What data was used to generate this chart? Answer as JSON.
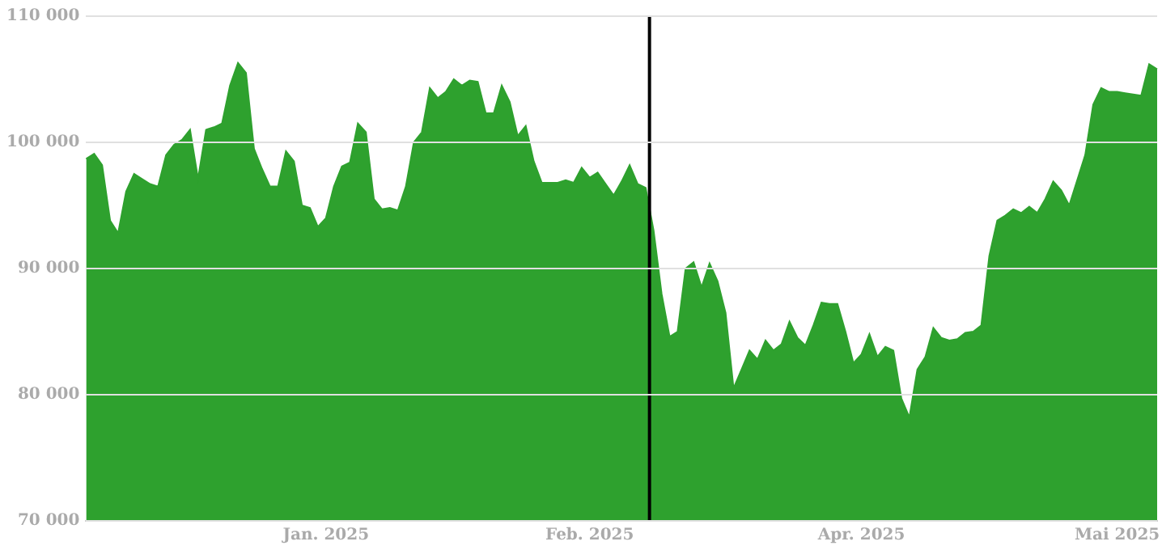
{
  "chart_data": {
    "type": "area",
    "categories": [
      null,
      null,
      null,
      null,
      null,
      null,
      null,
      null,
      null,
      null,
      null,
      null,
      null,
      null,
      null,
      null,
      null,
      null,
      null,
      null,
      null,
      null,
      null,
      null,
      null,
      null,
      null,
      null,
      null,
      null,
      "Jan. 2025",
      null,
      null,
      null,
      null,
      null,
      null,
      null,
      null,
      null,
      null,
      null,
      null,
      null,
      null,
      null,
      null,
      null,
      null,
      null,
      null,
      null,
      null,
      null,
      null,
      null,
      null,
      null,
      null,
      null,
      null,
      null,
      null,
      "Feb. 2025",
      null,
      null,
      null,
      null,
      null,
      null,
      null,
      null,
      null,
      null,
      null,
      null,
      null,
      null,
      null,
      null,
      null,
      null,
      null,
      null,
      null,
      null,
      null,
      null,
      null,
      null,
      null,
      null,
      null,
      null,
      null,
      null,
      null,
      "Apr. 2025",
      null,
      null,
      null,
      null,
      null,
      null,
      null,
      null,
      null,
      null,
      null,
      null,
      null,
      null,
      null,
      null,
      null,
      null,
      null,
      null,
      null,
      null,
      null,
      null,
      null,
      null,
      null,
      null,
      null,
      null,
      null,
      "Mai 2025",
      null,
      null,
      null,
      null,
      null
    ],
    "series": [
      {
        "color": "#2ea12e",
        "values": [
          98700,
          99100,
          98200,
          93800,
          92800,
          96100,
          97500,
          97100,
          96700,
          96500,
          99000,
          99800,
          100200,
          101000,
          97100,
          101000,
          101200,
          101500,
          104500,
          106300,
          105500,
          99500,
          97900,
          96500,
          96500,
          99300,
          98500,
          95000,
          94800,
          93300,
          94000,
          96500,
          98100,
          98400,
          101500,
          100800,
          95500,
          94700,
          94800,
          94600,
          96500,
          100000,
          100800,
          104300,
          103500,
          104000,
          105000,
          104500,
          104900,
          104800,
          102300,
          102300,
          104500,
          103200,
          100500,
          101300,
          98500,
          96800,
          96800,
          96800,
          97000,
          96800,
          98000,
          97200,
          97600,
          96700,
          95800,
          96900,
          98200,
          96700,
          96400,
          93000,
          88000,
          84600,
          85000,
          90000,
          90500,
          88500,
          90400,
          89000,
          86500,
          80500,
          82000,
          83500,
          82800,
          84300,
          83500,
          84000,
          85800,
          84500,
          83900,
          85500,
          87300,
          87200,
          87200,
          85000,
          82500,
          83200,
          84800,
          83000,
          83800,
          83500,
          79700,
          78200,
          82000,
          83000,
          85300,
          84500,
          84300,
          84400,
          84900,
          85000,
          85500,
          91000,
          93800,
          94200,
          94700,
          94400,
          94900,
          94400,
          95500,
          96900,
          96200,
          95000,
          97000,
          99000,
          103000,
          104300,
          104000,
          104000,
          103900,
          103800,
          103700,
          106200,
          105800
        ]
      }
    ],
    "ylim": [
      70000,
      110000
    ],
    "yticks": [
      {
        "value": 70000,
        "label": "70 000"
      },
      {
        "value": 80000,
        "label": "80 000"
      },
      {
        "value": 90000,
        "label": "90 000"
      },
      {
        "value": 100000,
        "label": "100 000"
      },
      {
        "value": 110000,
        "label": "110 000"
      }
    ],
    "grid": "y",
    "legend": false
  }
}
